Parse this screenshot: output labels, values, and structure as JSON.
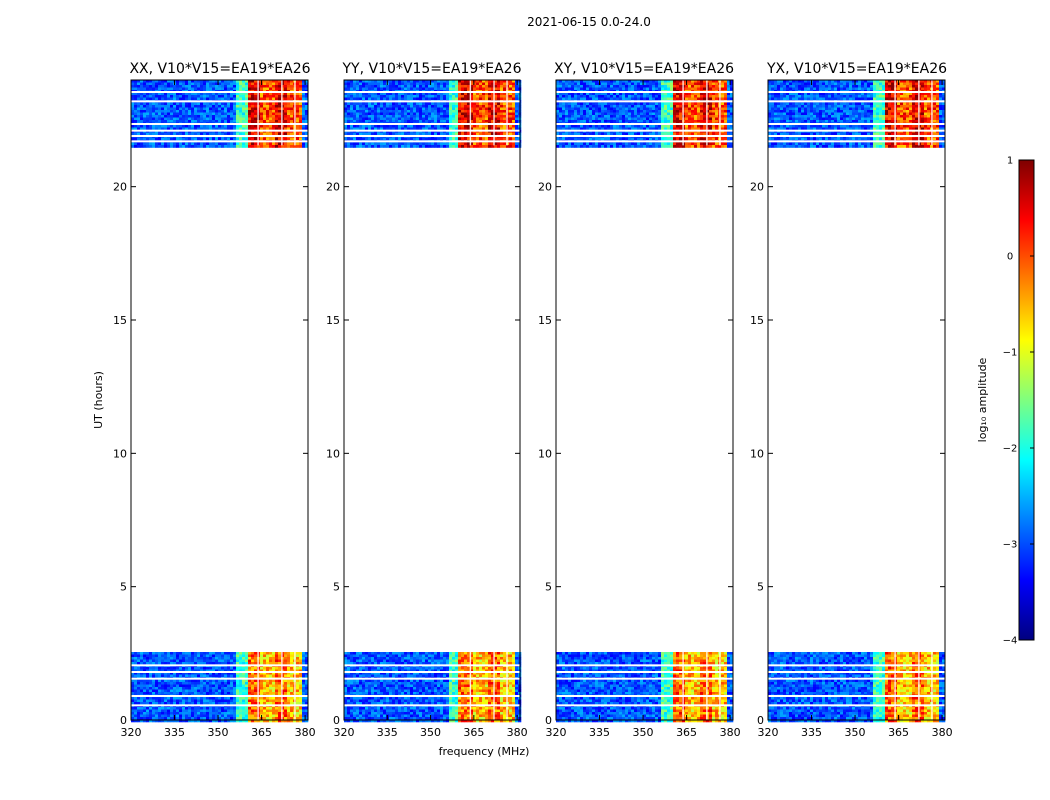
{
  "figure": {
    "suptitle": "2021-06-15 0.0-24.0"
  },
  "chart_data": {
    "type": "heatmap",
    "xlabel": "frequency (MHz)",
    "ylabel": "UT (hours)",
    "xlim": [
      320,
      381
    ],
    "ylim": [
      0,
      24
    ],
    "xticks": [
      320,
      335,
      350,
      365,
      380
    ],
    "xtick_labels": [
      "320",
      "335",
      "350",
      "365",
      "380"
    ],
    "yticks": [
      0,
      5,
      10,
      15,
      20
    ],
    "ytick_labels": [
      "0",
      "5",
      "10",
      "15",
      "20"
    ],
    "data_time_ranges": [
      [
        0.0,
        2.55
      ],
      [
        21.55,
        24.0
      ]
    ],
    "strong_band_MHz": [
      359.5,
      378.5
    ],
    "panels": [
      {
        "title": "XX, V10*V15=EA19*EA26"
      },
      {
        "title": "YY, V10*V15=EA19*EA26"
      },
      {
        "title": "XY, V10*V15=EA19*EA26"
      },
      {
        "title": "YX, V10*V15=EA19*EA26"
      }
    ],
    "colorbar": {
      "label": "log₁₀ amplitude",
      "range": [
        -4,
        1
      ],
      "ticks": [
        1,
        0,
        -1,
        -2,
        -3,
        -4
      ],
      "tick_labels": [
        "1",
        "0",
        "−1",
        "−2",
        "−3",
        "−4"
      ],
      "colormap": [
        "#00007f",
        "#0000ff",
        "#007fff",
        "#00ffff",
        "#7fff7f",
        "#ffff00",
        "#ff7f00",
        "#ff0000",
        "#7f0000"
      ]
    }
  }
}
